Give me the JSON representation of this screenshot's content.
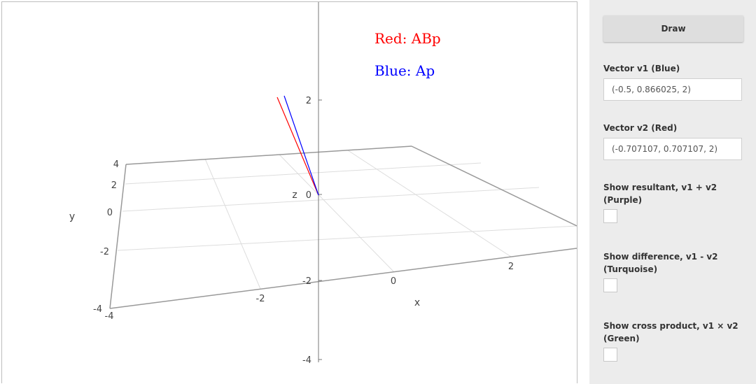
{
  "plot": {
    "legend": {
      "red_label": "Red: ABp",
      "blue_label": "Blue: Ap",
      "red_color": "#ff0000",
      "blue_color": "#0000ff"
    },
    "axes": {
      "x_label": "x",
      "y_label": "y",
      "z_label": "z",
      "x_ticks": [
        "-4",
        "-2",
        "0",
        "2"
      ],
      "y_ticks": [
        "-4",
        "-2",
        "0",
        "2",
        "4"
      ],
      "z_ticks": [
        "2",
        "0",
        "-2",
        "-4"
      ]
    }
  },
  "controls": {
    "draw_label": "Draw",
    "v1_label": "Vector v1 (Blue)",
    "v1_value": "(-0.5, 0.866025, 2)",
    "v2_label": "Vector v2 (Red)",
    "v2_value": "(-0.707107, 0.707107, 2)",
    "resultant_label": "Show resultant, v1 + v2 (Purple)",
    "resultant_checked": false,
    "difference_label": "Show difference, v1 - v2 (Turquoise)",
    "difference_checked": false,
    "cross_label": "Show cross product, v1 × v2 (Green)",
    "cross_checked": false
  }
}
